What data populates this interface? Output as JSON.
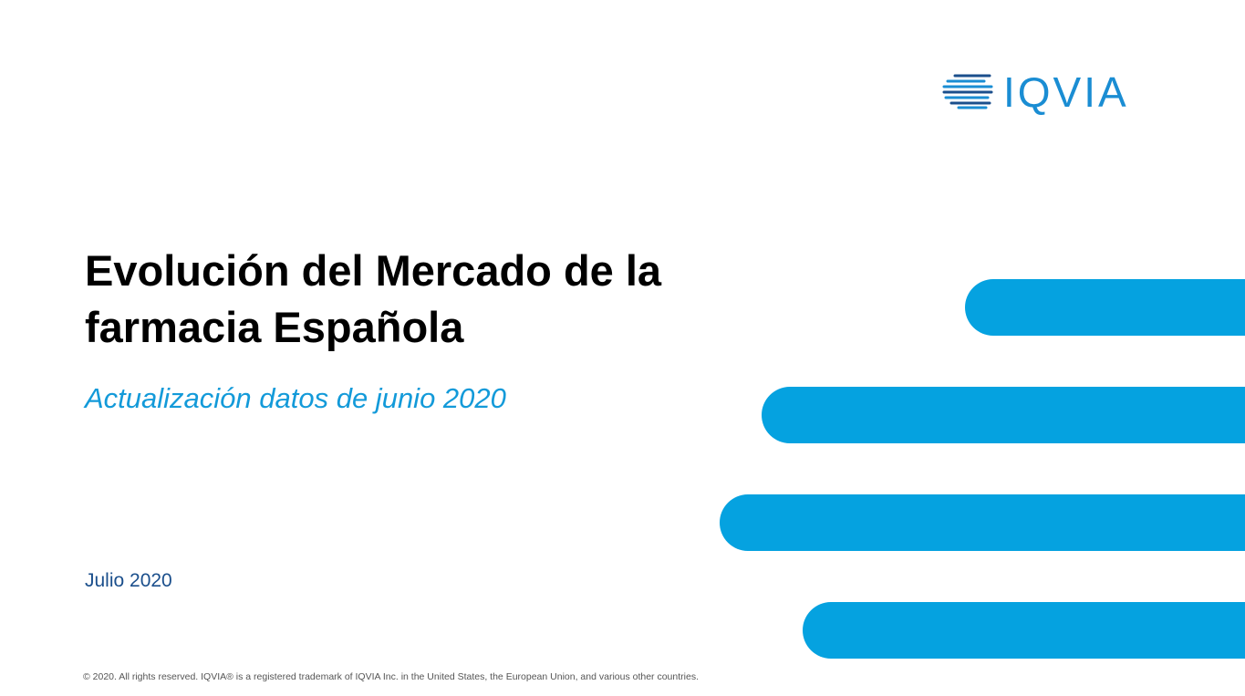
{
  "brand": {
    "logo_text": "IQVIA",
    "logo_icon": "iqvia-stripes-logo-icon",
    "primary_color": "#05a2e0",
    "dark_blue": "#1b4f8c"
  },
  "slide": {
    "title": "Evolución del Mercado de la farmacia Española",
    "subtitle": "Actualización datos de junio 2020",
    "date": "Julio 2020",
    "footer": "© 2020. All rights reserved. IQVIA® is a registered trademark of IQVIA Inc. in the United States, the European Union, and various other countries."
  },
  "decoration": {
    "stripes_icon": "decorative-stripes",
    "stripe_color": "#05a2e0"
  }
}
